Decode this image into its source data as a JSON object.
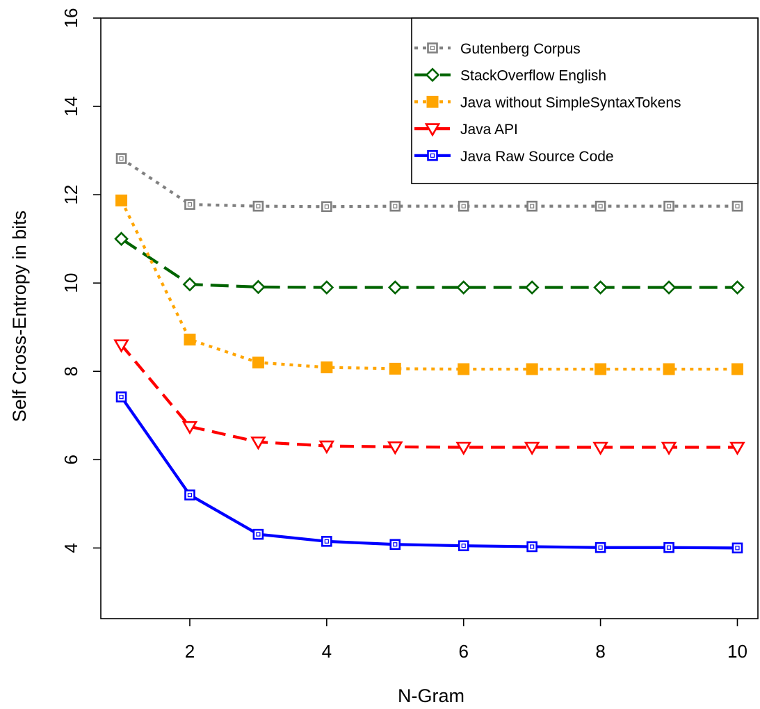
{
  "chart_data": {
    "type": "line",
    "title": "",
    "xlabel": "N-Gram",
    "ylabel": "Self Cross-Entropy in bits",
    "x": [
      1,
      2,
      3,
      4,
      5,
      6,
      7,
      8,
      9,
      10
    ],
    "xlim": [
      0.7,
      10.3
    ],
    "ylim": [
      2.4,
      16
    ],
    "xticks": [
      2,
      4,
      6,
      8,
      10
    ],
    "yticks": [
      4,
      6,
      8,
      10,
      12,
      14,
      16
    ],
    "grid": false,
    "legend_position": "top-right",
    "series": [
      {
        "name": "Gutenberg Corpus",
        "color": "#808080",
        "marker": "square-open",
        "line_style": "dotted",
        "values": [
          12.82,
          11.78,
          11.74,
          11.73,
          11.74,
          11.74,
          11.74,
          11.74,
          11.74,
          11.74
        ]
      },
      {
        "name": "StackOverflow English",
        "color": "#006400",
        "marker": "diamond-open",
        "line_style": "long-dash",
        "values": [
          11.0,
          9.97,
          9.91,
          9.9,
          9.9,
          9.9,
          9.9,
          9.9,
          9.9,
          9.9
        ]
      },
      {
        "name": "Java without SimpleSyntaxTokens",
        "color": "#FFA500",
        "marker": "square-filled",
        "line_style": "dotted",
        "values": [
          11.87,
          8.72,
          8.2,
          8.09,
          8.06,
          8.05,
          8.05,
          8.05,
          8.05,
          8.05
        ]
      },
      {
        "name": "Java API",
        "color": "#FF0000",
        "marker": "triangle-down-open",
        "line_style": "dashed",
        "values": [
          8.6,
          6.75,
          6.4,
          6.31,
          6.29,
          6.28,
          6.28,
          6.28,
          6.28,
          6.28
        ]
      },
      {
        "name": "Java Raw Source Code",
        "color": "#0000FF",
        "marker": "square-open",
        "line_style": "solid",
        "values": [
          7.42,
          5.2,
          4.31,
          4.15,
          4.08,
          4.05,
          4.03,
          4.01,
          4.01,
          4.0
        ]
      }
    ]
  }
}
